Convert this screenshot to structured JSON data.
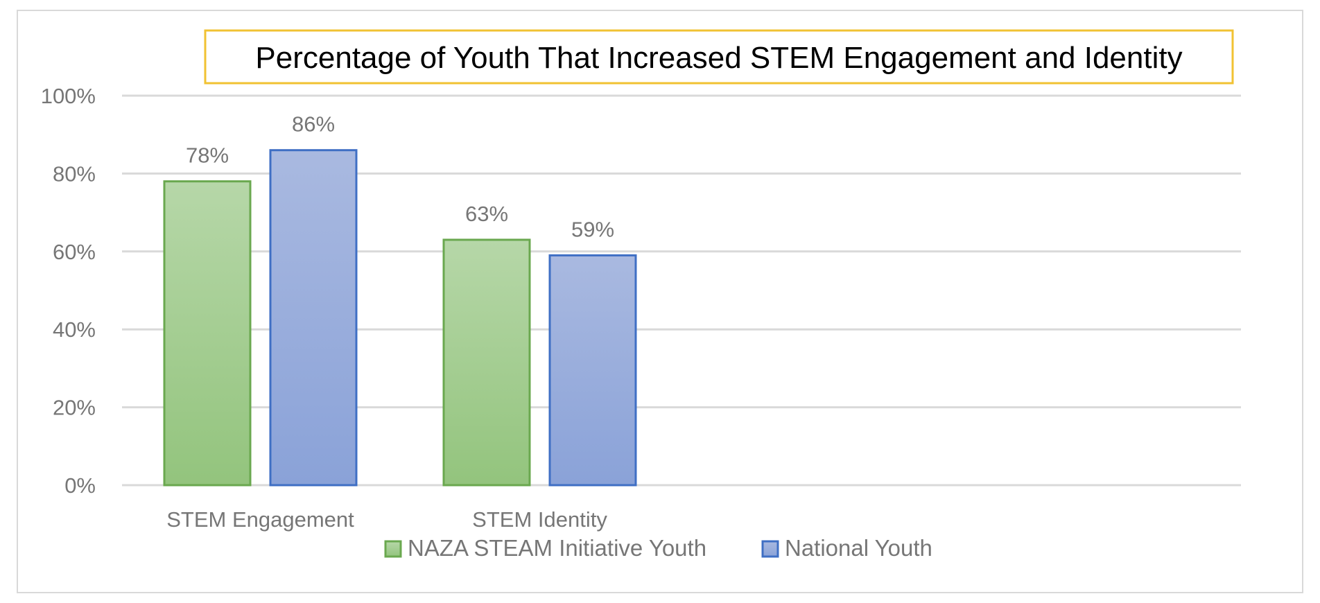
{
  "chart_data": {
    "type": "bar",
    "title": "Percentage of Youth That Increased STEM Engagement and Identity",
    "categories": [
      "STEM Engagement",
      "STEM Identity"
    ],
    "series": [
      {
        "name": "NAZA STEAM Initiative Youth",
        "values": [
          78,
          63
        ],
        "labels": [
          "78%",
          "63%"
        ],
        "fill_top": "#b6d7a8",
        "fill_bottom": "#93c47d",
        "stroke": "#6aa84f"
      },
      {
        "name": "National Youth",
        "values": [
          86,
          59
        ],
        "labels": [
          "86%",
          "59%"
        ],
        "fill_top": "#a9b9e0",
        "fill_bottom": "#8aa2d8",
        "stroke": "#3f6fc4"
      }
    ],
    "ylim": [
      0,
      100
    ],
    "yticks": [
      0,
      20,
      40,
      60,
      80,
      100
    ],
    "ytick_labels": [
      "0%",
      "20%",
      "40%",
      "60%",
      "80%",
      "100%"
    ],
    "xlabel": "",
    "ylabel": "",
    "grid": true,
    "legend_position": "bottom",
    "title_border_color": "#f1c232",
    "gridline_color": "#d9d9d9"
  }
}
